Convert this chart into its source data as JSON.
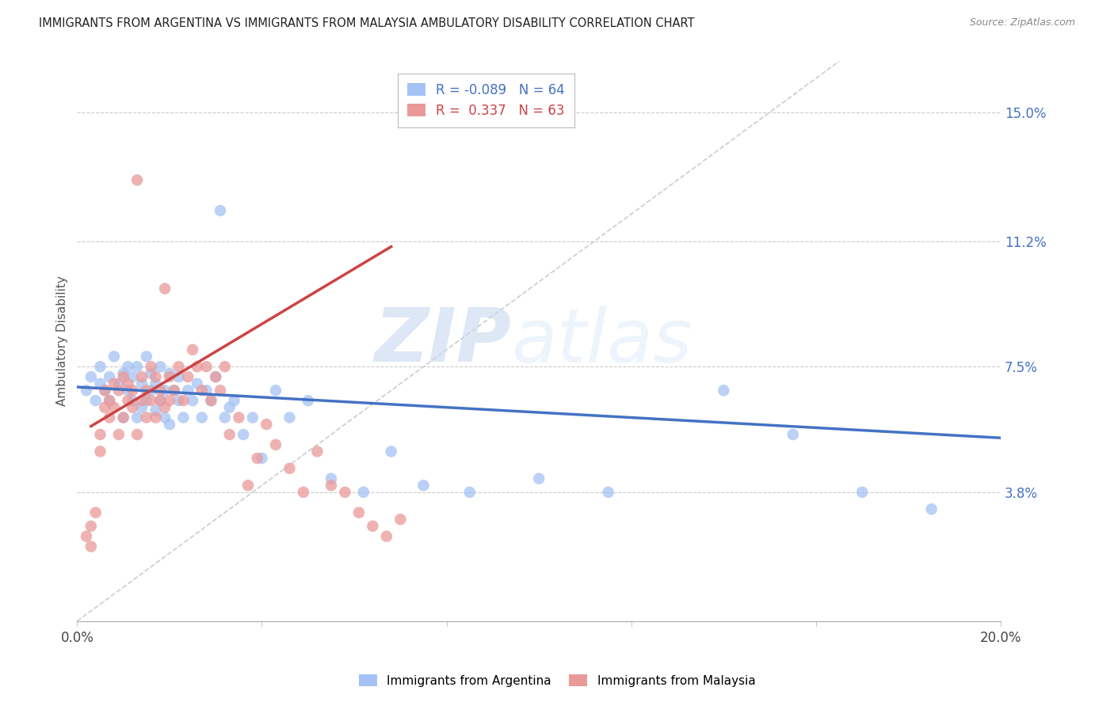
{
  "title": "IMMIGRANTS FROM ARGENTINA VS IMMIGRANTS FROM MALAYSIA AMBULATORY DISABILITY CORRELATION CHART",
  "source": "Source: ZipAtlas.com",
  "ylabel": "Ambulatory Disability",
  "xlim": [
    0.0,
    0.2
  ],
  "ylim": [
    0.0,
    0.165
  ],
  "ytick_positions": [
    0.038,
    0.075,
    0.112,
    0.15
  ],
  "ytick_labels": [
    "3.8%",
    "7.5%",
    "11.2%",
    "15.0%"
  ],
  "r_argentina": -0.089,
  "n_argentina": 64,
  "r_malaysia": 0.337,
  "n_malaysia": 63,
  "color_argentina": "#a4c2f4",
  "color_malaysia": "#ea9999",
  "color_argentina_line": "#4472c4",
  "color_malaysia_line": "#cc4444",
  "color_diagonal": "#cccccc",
  "arg_x": [
    0.002,
    0.003,
    0.004,
    0.005,
    0.005,
    0.006,
    0.007,
    0.007,
    0.008,
    0.009,
    0.01,
    0.01,
    0.011,
    0.011,
    0.012,
    0.012,
    0.013,
    0.013,
    0.014,
    0.014,
    0.015,
    0.015,
    0.016,
    0.016,
    0.017,
    0.017,
    0.018,
    0.018,
    0.019,
    0.019,
    0.02,
    0.02,
    0.021,
    0.022,
    0.022,
    0.023,
    0.024,
    0.025,
    0.026,
    0.027,
    0.028,
    0.029,
    0.03,
    0.031,
    0.032,
    0.033,
    0.034,
    0.036,
    0.038,
    0.04,
    0.043,
    0.046,
    0.05,
    0.055,
    0.062,
    0.068,
    0.075,
    0.085,
    0.1,
    0.115,
    0.14,
    0.155,
    0.17,
    0.185
  ],
  "arg_y": [
    0.068,
    0.072,
    0.065,
    0.075,
    0.07,
    0.068,
    0.072,
    0.065,
    0.078,
    0.07,
    0.073,
    0.06,
    0.068,
    0.075,
    0.065,
    0.072,
    0.06,
    0.075,
    0.063,
    0.07,
    0.065,
    0.078,
    0.068,
    0.073,
    0.062,
    0.07,
    0.065,
    0.075,
    0.06,
    0.068,
    0.073,
    0.058,
    0.068,
    0.065,
    0.072,
    0.06,
    0.068,
    0.065,
    0.07,
    0.06,
    0.068,
    0.065,
    0.072,
    0.121,
    0.06,
    0.063,
    0.065,
    0.055,
    0.06,
    0.048,
    0.068,
    0.06,
    0.065,
    0.042,
    0.038,
    0.05,
    0.04,
    0.038,
    0.042,
    0.038,
    0.068,
    0.055,
    0.038,
    0.033
  ],
  "mal_x": [
    0.002,
    0.003,
    0.003,
    0.004,
    0.005,
    0.005,
    0.006,
    0.006,
    0.007,
    0.007,
    0.008,
    0.008,
    0.009,
    0.009,
    0.01,
    0.01,
    0.011,
    0.011,
    0.012,
    0.012,
    0.013,
    0.013,
    0.014,
    0.014,
    0.015,
    0.015,
    0.016,
    0.016,
    0.017,
    0.017,
    0.018,
    0.018,
    0.019,
    0.019,
    0.02,
    0.02,
    0.021,
    0.022,
    0.023,
    0.024,
    0.025,
    0.026,
    0.027,
    0.028,
    0.029,
    0.03,
    0.031,
    0.032,
    0.033,
    0.035,
    0.037,
    0.039,
    0.041,
    0.043,
    0.046,
    0.049,
    0.052,
    0.055,
    0.058,
    0.061,
    0.064,
    0.067,
    0.07
  ],
  "mal_y": [
    0.025,
    0.022,
    0.028,
    0.032,
    0.055,
    0.05,
    0.063,
    0.068,
    0.065,
    0.06,
    0.07,
    0.063,
    0.068,
    0.055,
    0.072,
    0.06,
    0.065,
    0.07,
    0.063,
    0.068,
    0.13,
    0.055,
    0.065,
    0.072,
    0.06,
    0.068,
    0.065,
    0.075,
    0.06,
    0.072,
    0.065,
    0.068,
    0.063,
    0.098,
    0.065,
    0.072,
    0.068,
    0.075,
    0.065,
    0.072,
    0.08,
    0.075,
    0.068,
    0.075,
    0.065,
    0.072,
    0.068,
    0.075,
    0.055,
    0.06,
    0.04,
    0.048,
    0.058,
    0.052,
    0.045,
    0.038,
    0.05,
    0.04,
    0.038,
    0.032,
    0.028,
    0.025,
    0.03
  ],
  "watermark_zip": "ZIP",
  "watermark_atlas": "atlas"
}
